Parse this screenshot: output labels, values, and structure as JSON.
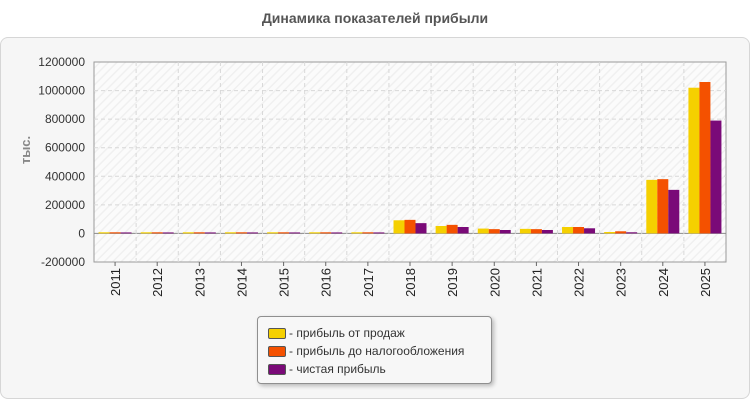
{
  "colors": {
    "sales_profit": "#f5d000",
    "pretax_profit": "#f45100",
    "net_profit": "#7a0a78"
  },
  "chart_data": {
    "type": "bar",
    "title": "Динамика показателей прибыли",
    "ylabel": "тыс.",
    "xlabel": "",
    "ylim": [
      -200000,
      1200000
    ],
    "yticks": [
      -200000,
      0,
      200000,
      400000,
      600000,
      800000,
      1000000,
      1200000
    ],
    "ytick_labels": [
      "-200000",
      "0",
      "200000",
      "400000",
      "600000",
      "800000",
      "1000000",
      "1200000"
    ],
    "grid": true,
    "legend_position": "bottom-center",
    "categories": [
      "2011",
      "2012",
      "2013",
      "2014",
      "2015",
      "2016",
      "2017",
      "2018",
      "2019",
      "2020",
      "2021",
      "2022",
      "2023",
      "2024",
      "2025"
    ],
    "series": [
      {
        "name": "- прибыль от продаж",
        "color": "#f5d000",
        "values": [
          8000,
          8000,
          8000,
          8000,
          8000,
          8000,
          8000,
          92000,
          52000,
          34000,
          32000,
          45000,
          10000,
          375000,
          1020000
        ]
      },
      {
        "name": "- прибыль до налогообложения",
        "color": "#f45100",
        "values": [
          8000,
          8000,
          8000,
          8000,
          8000,
          8000,
          8000,
          95000,
          60000,
          30000,
          30000,
          45000,
          15000,
          380000,
          1060000
        ]
      },
      {
        "name": "- чистая прибыль",
        "color": "#7a0a78",
        "values": [
          7000,
          7000,
          7000,
          7000,
          7000,
          7000,
          7000,
          72000,
          45000,
          24000,
          24000,
          36000,
          8000,
          305000,
          790000
        ]
      }
    ]
  }
}
